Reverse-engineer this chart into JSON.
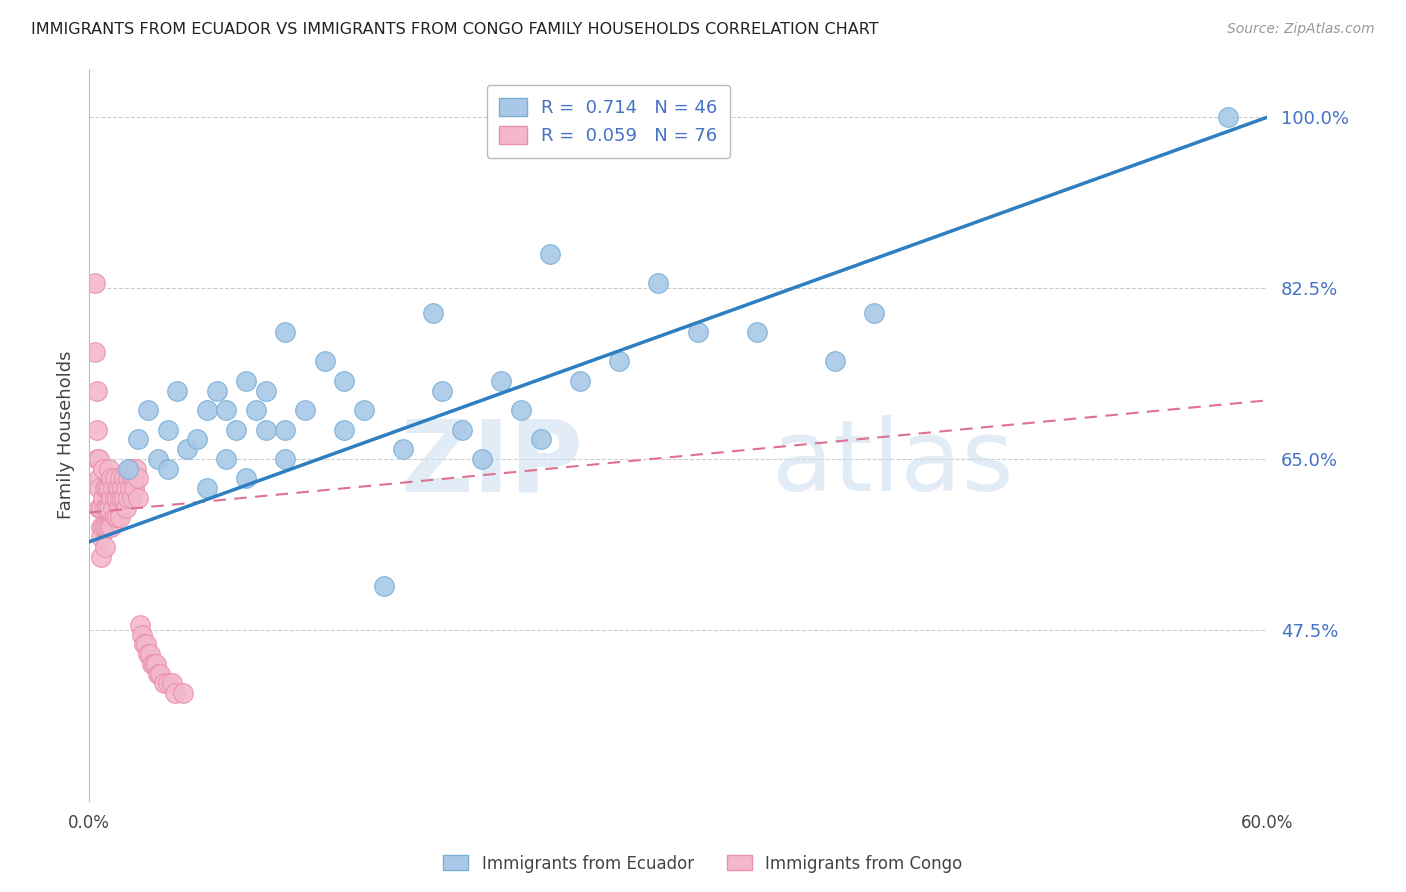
{
  "title": "IMMIGRANTS FROM ECUADOR VS IMMIGRANTS FROM CONGO FAMILY HOUSEHOLDS CORRELATION CHART",
  "source": "Source: ZipAtlas.com",
  "ylabel_label": "Family Households",
  "ytick_labels": [
    "47.5%",
    "65.0%",
    "82.5%",
    "100.0%"
  ],
  "ytick_values": [
    0.475,
    0.65,
    0.825,
    1.0
  ],
  "xlim": [
    0.0,
    0.6
  ],
  "ylim": [
    0.3,
    1.05
  ],
  "ecuador_color": "#a8c8e8",
  "ecuador_edge": "#7aafd4",
  "congo_color": "#f4b8cc",
  "congo_edge": "#e890aa",
  "trend_ecuador_color": "#2d7fc1",
  "trend_congo_color": "#e07090",
  "legend_ecuador_label": "R =  0.714   N = 46",
  "legend_congo_label": "R =  0.059   N = 76",
  "bottom_legend_ecuador": "Immigrants from Ecuador",
  "bottom_legend_congo": "Immigrants from Congo",
  "ecuador_x": [
    0.02,
    0.025,
    0.03,
    0.035,
    0.04,
    0.04,
    0.045,
    0.05,
    0.055,
    0.06,
    0.06,
    0.065,
    0.07,
    0.07,
    0.075,
    0.08,
    0.08,
    0.085,
    0.09,
    0.09,
    0.1,
    0.1,
    0.1,
    0.11,
    0.12,
    0.13,
    0.13,
    0.14,
    0.15,
    0.16,
    0.175,
    0.18,
    0.19,
    0.2,
    0.21,
    0.22,
    0.23,
    0.235,
    0.25,
    0.27,
    0.29,
    0.31,
    0.34,
    0.38,
    0.4,
    0.58
  ],
  "ecuador_y": [
    0.64,
    0.67,
    0.7,
    0.65,
    0.64,
    0.68,
    0.72,
    0.66,
    0.67,
    0.62,
    0.7,
    0.72,
    0.65,
    0.7,
    0.68,
    0.63,
    0.73,
    0.7,
    0.68,
    0.72,
    0.65,
    0.68,
    0.78,
    0.7,
    0.75,
    0.68,
    0.73,
    0.7,
    0.52,
    0.66,
    0.8,
    0.72,
    0.68,
    0.65,
    0.73,
    0.7,
    0.67,
    0.86,
    0.73,
    0.75,
    0.83,
    0.78,
    0.78,
    0.75,
    0.8,
    1.0
  ],
  "congo_x": [
    0.003,
    0.003,
    0.004,
    0.004,
    0.004,
    0.005,
    0.005,
    0.005,
    0.005,
    0.006,
    0.006,
    0.006,
    0.006,
    0.007,
    0.007,
    0.007,
    0.008,
    0.008,
    0.008,
    0.008,
    0.009,
    0.009,
    0.009,
    0.01,
    0.01,
    0.01,
    0.01,
    0.011,
    0.011,
    0.011,
    0.012,
    0.012,
    0.013,
    0.013,
    0.013,
    0.014,
    0.014,
    0.014,
    0.015,
    0.015,
    0.016,
    0.016,
    0.016,
    0.017,
    0.017,
    0.018,
    0.018,
    0.019,
    0.019,
    0.02,
    0.02,
    0.021,
    0.021,
    0.022,
    0.022,
    0.023,
    0.023,
    0.024,
    0.025,
    0.025,
    0.026,
    0.027,
    0.028,
    0.029,
    0.03,
    0.031,
    0.032,
    0.033,
    0.034,
    0.035,
    0.036,
    0.038,
    0.04,
    0.042,
    0.044,
    0.048
  ],
  "congo_y": [
    0.83,
    0.76,
    0.72,
    0.68,
    0.65,
    0.65,
    0.63,
    0.62,
    0.6,
    0.6,
    0.58,
    0.57,
    0.55,
    0.64,
    0.61,
    0.58,
    0.62,
    0.6,
    0.58,
    0.56,
    0.62,
    0.6,
    0.58,
    0.64,
    0.62,
    0.6,
    0.58,
    0.63,
    0.61,
    0.58,
    0.62,
    0.6,
    0.63,
    0.61,
    0.59,
    0.62,
    0.61,
    0.59,
    0.62,
    0.6,
    0.63,
    0.61,
    0.59,
    0.62,
    0.61,
    0.63,
    0.61,
    0.62,
    0.6,
    0.63,
    0.61,
    0.64,
    0.62,
    0.63,
    0.61,
    0.63,
    0.62,
    0.64,
    0.63,
    0.61,
    0.48,
    0.47,
    0.46,
    0.46,
    0.45,
    0.45,
    0.44,
    0.44,
    0.44,
    0.43,
    0.43,
    0.42,
    0.42,
    0.42,
    0.41,
    0.41
  ],
  "ecuador_trend_x": [
    0.0,
    0.6
  ],
  "ecuador_trend_y": [
    0.565,
    1.0
  ],
  "congo_trend_x": [
    0.0,
    0.6
  ],
  "congo_trend_y": [
    0.595,
    0.71
  ]
}
